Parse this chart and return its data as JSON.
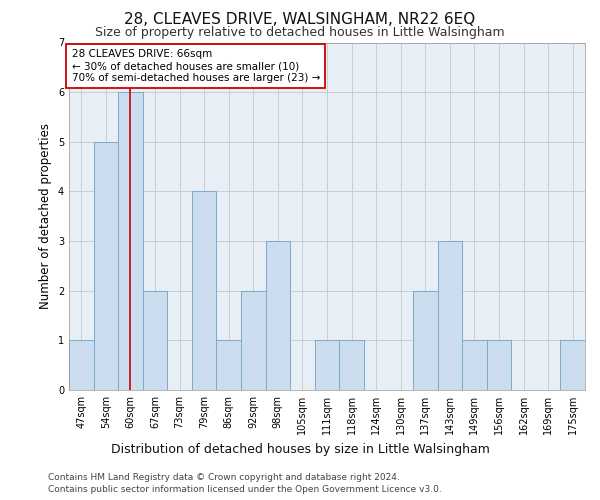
{
  "title1": "28, CLEAVES DRIVE, WALSINGHAM, NR22 6EQ",
  "title2": "Size of property relative to detached houses in Little Walsingham",
  "xlabel": "Distribution of detached houses by size in Little Walsingham",
  "ylabel": "Number of detached properties",
  "footer1": "Contains HM Land Registry data © Crown copyright and database right 2024.",
  "footer2": "Contains public sector information licensed under the Open Government Licence v3.0.",
  "categories": [
    "47sqm",
    "54sqm",
    "60sqm",
    "67sqm",
    "73sqm",
    "79sqm",
    "86sqm",
    "92sqm",
    "98sqm",
    "105sqm",
    "111sqm",
    "118sqm",
    "124sqm",
    "130sqm",
    "137sqm",
    "143sqm",
    "149sqm",
    "156sqm",
    "162sqm",
    "169sqm",
    "175sqm"
  ],
  "values": [
    1,
    5,
    6,
    2,
    0,
    4,
    1,
    2,
    3,
    0,
    1,
    1,
    0,
    0,
    2,
    3,
    1,
    1,
    0,
    0,
    1
  ],
  "bar_color": "#ccddef",
  "bar_edge_color": "#7aaacb",
  "vline_x_index": 2,
  "vline_color": "#cc0000",
  "annotation_text": "28 CLEAVES DRIVE: 66sqm\n← 30% of detached houses are smaller (10)\n70% of semi-detached houses are larger (23) →",
  "annotation_box_color": "#ffffff",
  "annotation_box_edge": "#cc0000",
  "ylim": [
    0,
    7
  ],
  "yticks": [
    0,
    1,
    2,
    3,
    4,
    5,
    6,
    7
  ],
  "grid_color": "#cccccc",
  "bg_color": "#e8eef5",
  "title1_fontsize": 11,
  "title2_fontsize": 9,
  "xlabel_fontsize": 9,
  "ylabel_fontsize": 8.5,
  "tick_fontsize": 7,
  "footer_fontsize": 6.5,
  "annotation_fontsize": 7.5
}
